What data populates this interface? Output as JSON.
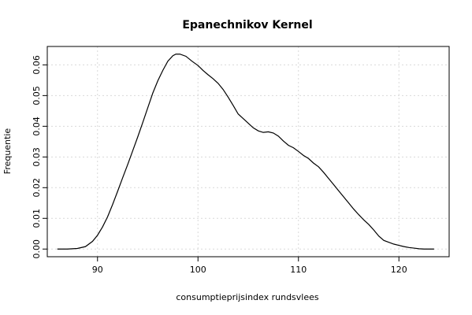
{
  "chart_data": {
    "type": "line",
    "title": "Epanechnikov Kernel",
    "xlabel": "consumptieprijsindex rundsvlees",
    "ylabel": "Frequentie",
    "xlim": [
      85,
      125
    ],
    "ylim": [
      -0.0025,
      0.066
    ],
    "x_ticks": [
      90,
      100,
      110,
      120
    ],
    "y_ticks": [
      0.0,
      0.01,
      0.02,
      0.03,
      0.04,
      0.05,
      0.06
    ],
    "x_tick_labels": [
      "90",
      "100",
      "110",
      "120"
    ],
    "y_tick_labels": [
      "0.00",
      "0.01",
      "0.02",
      "0.03",
      "0.04",
      "0.05",
      "0.06"
    ],
    "grid": true,
    "series": [
      {
        "x": [
          86.0,
          87.0,
          88.0,
          88.8,
          89.5,
          90.0,
          90.5,
          91.0,
          91.5,
          92.0,
          92.5,
          93.0,
          93.5,
          94.0,
          94.5,
          95.0,
          95.5,
          96.0,
          96.5,
          97.0,
          97.5,
          97.8,
          98.2,
          98.8,
          99.4,
          100.0,
          100.5,
          101.0,
          101.5,
          102.0,
          102.5,
          103.0,
          103.5,
          104.0,
          104.5,
          105.0,
          105.5,
          106.0,
          106.5,
          107.0,
          107.5,
          108.0,
          108.5,
          109.0,
          109.5,
          110.0,
          110.5,
          111.0,
          111.5,
          112.0,
          112.5,
          113.0,
          113.5,
          114.0,
          114.5,
          115.0,
          115.5,
          116.0,
          116.5,
          117.0,
          117.5,
          118.0,
          118.5,
          119.0,
          119.5,
          120.0,
          120.5,
          121.0,
          121.5,
          122.0,
          122.5,
          123.0,
          123.5
        ],
        "y": [
          0.0,
          0.0,
          0.0002,
          0.0008,
          0.0025,
          0.0045,
          0.0072,
          0.0105,
          0.0145,
          0.0188,
          0.0232,
          0.0275,
          0.032,
          0.0365,
          0.0412,
          0.046,
          0.0508,
          0.0548,
          0.0582,
          0.0612,
          0.063,
          0.0635,
          0.0635,
          0.0628,
          0.0612,
          0.0598,
          0.0582,
          0.0568,
          0.0555,
          0.054,
          0.052,
          0.0495,
          0.0468,
          0.044,
          0.0425,
          0.041,
          0.0395,
          0.0385,
          0.038,
          0.0382,
          0.0378,
          0.0368,
          0.0352,
          0.0338,
          0.033,
          0.0318,
          0.0305,
          0.0295,
          0.028,
          0.0268,
          0.025,
          0.023,
          0.021,
          0.019,
          0.017,
          0.015,
          0.013,
          0.0112,
          0.0095,
          0.008,
          0.0062,
          0.0042,
          0.0028,
          0.0022,
          0.0016,
          0.0012,
          0.0008,
          0.0005,
          0.0003,
          0.0001,
          0.0,
          0.0,
          0.0
        ]
      }
    ]
  }
}
